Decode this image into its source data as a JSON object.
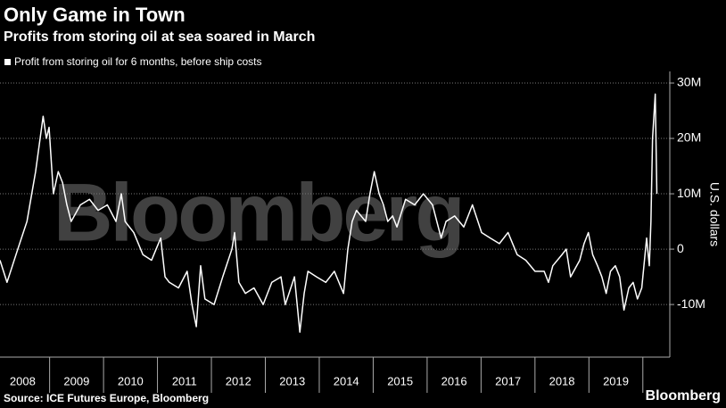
{
  "chart_data": {
    "type": "line",
    "title": "Only Game in Town",
    "subtitle": "Profits from storing oil at sea soared in March",
    "y_axis_label": "U.S. dollars",
    "source": "Source: ICE Futures Europe, Bloomberg",
    "brand": "Bloomberg",
    "watermark": "Bloomberg",
    "grid": true,
    "xlim": [
      2008.08,
      2020.5
    ],
    "ylim": [
      -19500000,
      32100000
    ],
    "xticks": [
      {
        "value": 2008.5,
        "label": "2008"
      },
      {
        "value": 2009.5,
        "label": "2009"
      },
      {
        "value": 2010.5,
        "label": "2010"
      },
      {
        "value": 2011.5,
        "label": "2011"
      },
      {
        "value": 2012.5,
        "label": "2012"
      },
      {
        "value": 2013.5,
        "label": "2013"
      },
      {
        "value": 2014.5,
        "label": "2014"
      },
      {
        "value": 2015.5,
        "label": "2015"
      },
      {
        "value": 2016.5,
        "label": "2016"
      },
      {
        "value": 2017.5,
        "label": "2017"
      },
      {
        "value": 2018.5,
        "label": "2018"
      },
      {
        "value": 2019.5,
        "label": "2019"
      }
    ],
    "yticks": [
      {
        "value": 30000000,
        "label": "30M"
      },
      {
        "value": 20000000,
        "label": "20M"
      },
      {
        "value": 10000000,
        "label": "10M"
      },
      0,
      {
        "value": -10000000,
        "label": "-10M"
      }
    ],
    "series": [
      {
        "name": "Profit from storing oil for 6 months, before ship costs",
        "color": "#ffffff",
        "x": [
          2008.08,
          2008.21,
          2008.41,
          2008.58,
          2008.74,
          2008.88,
          2008.94,
          2008.99,
          2009.07,
          2009.16,
          2009.24,
          2009.32,
          2009.4,
          2009.57,
          2009.74,
          2009.9,
          2010.07,
          2010.23,
          2010.33,
          2010.4,
          2010.56,
          2010.73,
          2010.89,
          2011.06,
          2011.14,
          2011.22,
          2011.39,
          2011.55,
          2011.64,
          2011.72,
          2011.8,
          2011.88,
          2012.05,
          2012.21,
          2012.38,
          2012.43,
          2012.51,
          2012.63,
          2012.79,
          2012.96,
          2013.12,
          2013.29,
          2013.37,
          2013.54,
          2013.64,
          2013.72,
          2013.79,
          2013.95,
          2014.12,
          2014.28,
          2014.45,
          2014.53,
          2014.61,
          2014.69,
          2014.86,
          2014.94,
          2015.02,
          2015.11,
          2015.19,
          2015.27,
          2015.36,
          2015.44,
          2015.6,
          2015.77,
          2015.93,
          2016.1,
          2016.26,
          2016.35,
          2016.51,
          2016.68,
          2016.84,
          2017.01,
          2017.17,
          2017.34,
          2017.5,
          2017.67,
          2017.83,
          2018.0,
          2018.17,
          2018.25,
          2018.33,
          2018.5,
          2018.58,
          2018.66,
          2018.83,
          2018.91,
          2018.99,
          2019.07,
          2019.16,
          2019.24,
          2019.32,
          2019.4,
          2019.49,
          2019.57,
          2019.65,
          2019.74,
          2019.82,
          2019.9,
          2019.98,
          2020.07,
          2020.12,
          2020.15,
          2020.18,
          2020.23,
          2020.26
        ],
        "values": [
          -2000000,
          -6000000,
          0,
          5000000,
          14000000,
          24000000,
          20000000,
          22000000,
          10000000,
          14000000,
          12000000,
          8000000,
          5000000,
          8000000,
          9000000,
          7000000,
          8000000,
          5000000,
          10000000,
          5000000,
          3000000,
          -1000000,
          -2000000,
          2000000,
          -5000000,
          -6000000,
          -7000000,
          -4000000,
          -10000000,
          -14000000,
          -3000000,
          -9000000,
          -10000000,
          -5000000,
          0,
          3000000,
          -6000000,
          -8000000,
          -7000000,
          -10000000,
          -6000000,
          -5000000,
          -10000000,
          -5000000,
          -15000000,
          -8000000,
          -4000000,
          -5000000,
          -6000000,
          -4000000,
          -8000000,
          0,
          5000000,
          7000000,
          5000000,
          10000000,
          14000000,
          10000000,
          8000000,
          5000000,
          6000000,
          4000000,
          9000000,
          8000000,
          10000000,
          8000000,
          2000000,
          5000000,
          6000000,
          4000000,
          8000000,
          3000000,
          2000000,
          1000000,
          3000000,
          -1000000,
          -2000000,
          -4000000,
          -4000000,
          -6000000,
          -3000000,
          -1000000,
          0,
          -5000000,
          -2000000,
          1000000,
          3000000,
          -1000000,
          -3000000,
          -5000000,
          -8000000,
          -4000000,
          -3000000,
          -5000000,
          -11000000,
          -7000000,
          -6000000,
          -9000000,
          -7000000,
          2000000,
          -3000000,
          5000000,
          20000000,
          28000000,
          10000000
        ]
      }
    ]
  }
}
